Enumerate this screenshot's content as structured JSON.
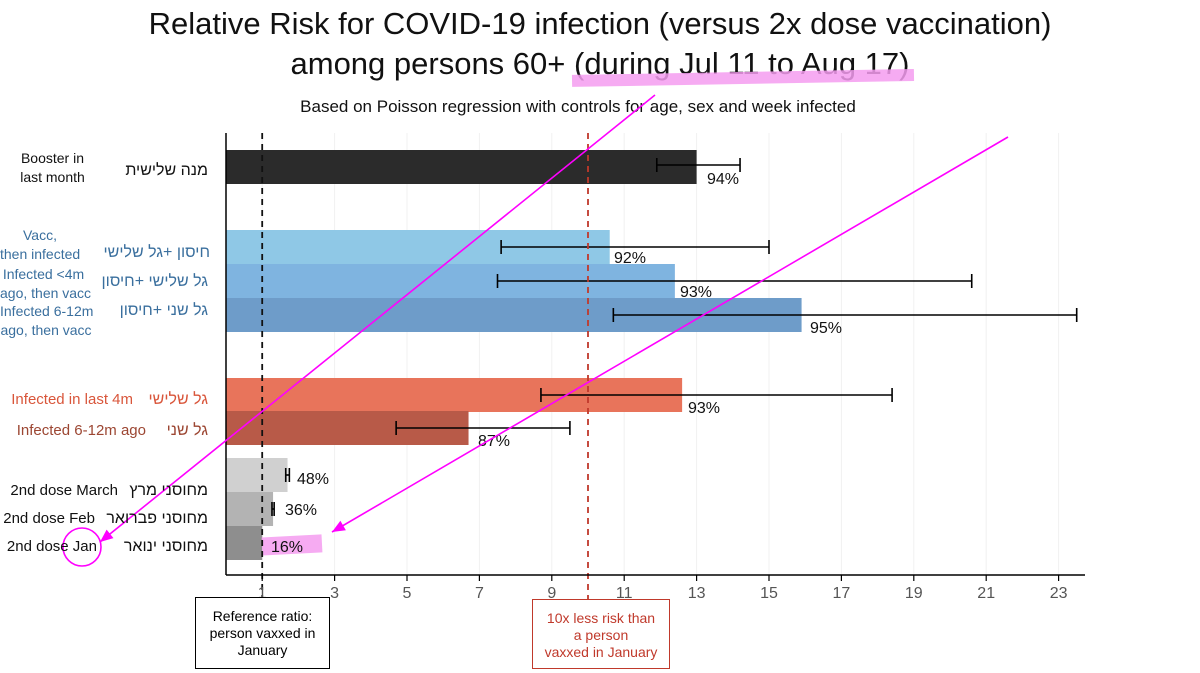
{
  "title_line1": "Relative Risk for COVID-19 infection (versus 2x dose vaccination)",
  "title_line2": "among persons 60+ (during Jul 11 to Aug 17)",
  "subtitle": "Based on Poisson regression with controls for age, sex and week infected",
  "colors": {
    "booster": "#2b2b2b",
    "vacc_then_infected": "#8fc8e6",
    "infected_4m_then_vacc": "#7fb4e0",
    "infected_6_12m_then_vacc": "#6e9cc9",
    "infected_last_4m": "#e8745b",
    "infected_6_12m": "#b85a48",
    "dose_march": "#d0d0d0",
    "dose_feb": "#b3b3b3",
    "dose_jan": "#8e8e8e",
    "reference_line": "#111111",
    "tenx_line": "#c0392b",
    "annotation": "#ff00ff",
    "label_blue": "#3a6f9e",
    "label_red": "#d9563b",
    "label_brown": "#9c4632"
  },
  "rows": [
    {
      "en": "Booster in\nlast month",
      "he": "מנה שלישית",
      "pct": "94%",
      "color_key": "booster",
      "label_color": "#111111"
    },
    {
      "en": "Vacc,\nthen infected",
      "he": "חיסון +גל שלישי",
      "pct": "92%",
      "color_key": "vacc_then_infected",
      "label_color": "#3a6f9e"
    },
    {
      "en": "Infected <4m\nago, then vacc",
      "he": "גל שלישי +חיסון",
      "pct": "93%",
      "color_key": "infected_4m_then_vacc",
      "label_color": "#3a6f9e"
    },
    {
      "en": "Infected 6-12m\nago, then vacc",
      "he": "גל שני +חיסון",
      "pct": "95%",
      "color_key": "infected_6_12m_then_vacc",
      "label_color": "#3a6f9e"
    },
    {
      "en": "Infected in last 4m",
      "he": "גל שלישי",
      "pct": "93%",
      "color_key": "infected_last_4m",
      "label_color": "#d9563b"
    },
    {
      "en": "Infected 6-12m ago",
      "he": "גל שני",
      "pct": "87%",
      "color_key": "infected_6_12m",
      "label_color": "#9c4632"
    },
    {
      "en": "2nd dose March",
      "he": "מחוסני מרץ",
      "pct": "48%",
      "color_key": "dose_march",
      "label_color": "#111111"
    },
    {
      "en": "2nd dose Feb",
      "he": "מחוסני פברואר",
      "pct": "36%",
      "color_key": "dose_feb",
      "label_color": "#111111"
    },
    {
      "en": "2nd dose Jan",
      "he": "מחוסני ינואר",
      "pct": "16%",
      "color_key": "dose_jan",
      "label_color": "#111111"
    }
  ],
  "reference_box": "Reference ratio:\nperson vaxxed in\nJanuary",
  "tenx_box": "10x less risk than\na person\nvaxxed in January",
  "chart_data": {
    "type": "bar",
    "orientation": "horizontal",
    "title": "Relative Risk for COVID-19 infection (versus 2x dose vaccination) among persons 60+ (during Jul 11 to Aug 17)",
    "subtitle": "Based on Poisson regression with controls for age, sex and week infected",
    "categories": [
      "Booster in last month",
      "Vacc, then infected",
      "Infected <4m ago, then vacc",
      "Infected 6-12m ago, then vacc",
      "Infected in last 4m",
      "Infected 6-12m ago",
      "2nd dose March",
      "2nd dose Feb",
      "2nd dose Jan"
    ],
    "values": [
      13.0,
      10.6,
      12.4,
      15.9,
      12.6,
      6.7,
      1.7,
      1.3,
      1.0
    ],
    "ci_low": [
      11.9,
      7.6,
      7.5,
      10.7,
      8.7,
      4.7,
      1.65,
      1.27,
      null
    ],
    "ci_high": [
      14.2,
      15.0,
      20.6,
      23.5,
      18.4,
      9.5,
      1.75,
      1.33,
      null
    ],
    "percent_labels": [
      "94%",
      "92%",
      "93%",
      "95%",
      "93%",
      "87%",
      "48%",
      "36%",
      "16%"
    ],
    "xticks": [
      1,
      3,
      5,
      7,
      9,
      11,
      13,
      15,
      17,
      19,
      21,
      23
    ],
    "xlim": [
      0,
      23.5
    ],
    "reference_lines": [
      1,
      10
    ],
    "grid": true
  }
}
